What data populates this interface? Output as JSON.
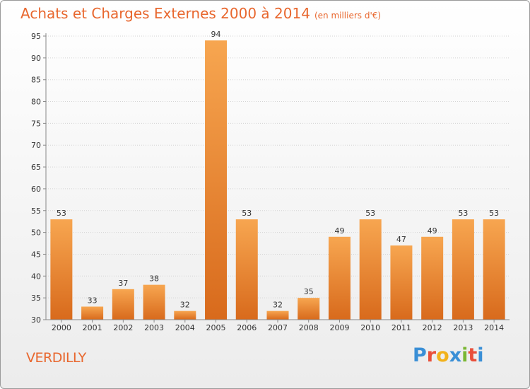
{
  "page": {
    "title": "Achats et Charges Externes 2000 à 2014",
    "subtitle": "(en milliers d'€)",
    "footer_name": "VERDILLY",
    "logo_letters": [
      "P",
      "r",
      "o",
      "x",
      "i",
      "t",
      "i"
    ],
    "logo_colors": [
      "#3a8fd6",
      "#e94f3a",
      "#f2b21b",
      "#3a8fd6",
      "#7ab733",
      "#e94f3a",
      "#3a8fd6"
    ]
  },
  "chart_data": {
    "type": "bar",
    "title": "Achats et Charges Externes 2000 à 2014",
    "subtitle": "(en milliers d'€)",
    "categories": [
      "2000",
      "2001",
      "2002",
      "2003",
      "2004",
      "2005",
      "2006",
      "2007",
      "2008",
      "2009",
      "2010",
      "2011",
      "2012",
      "2013",
      "2014"
    ],
    "values": [
      53,
      33,
      37,
      38,
      32,
      94,
      53,
      32,
      35,
      49,
      53,
      47,
      49,
      53,
      53
    ],
    "ylim": [
      30,
      95
    ],
    "yticks": [
      30,
      35,
      40,
      45,
      50,
      55,
      60,
      65,
      70,
      75,
      80,
      85,
      90,
      95
    ],
    "grid": "horizontal",
    "bar_color": "#f0913a",
    "title_color": "#e8672e"
  }
}
